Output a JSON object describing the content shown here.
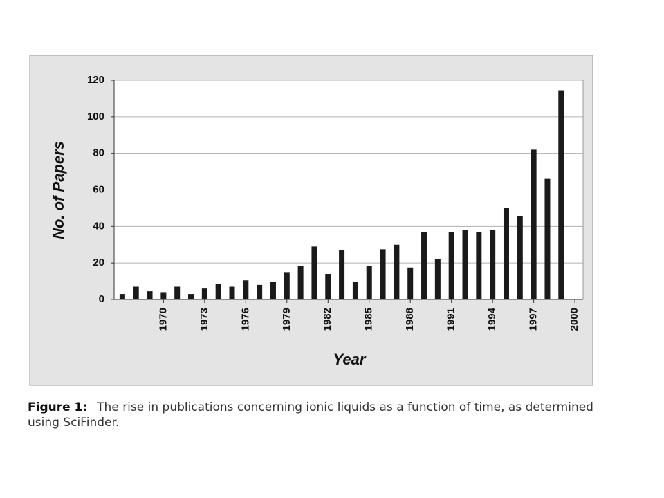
{
  "chart_data": {
    "type": "bar",
    "x_label": "Year",
    "y_label": "No. of Papers",
    "x": [
      1967,
      1968,
      1969,
      1970,
      1971,
      1972,
      1973,
      1974,
      1975,
      1976,
      1977,
      1978,
      1979,
      1980,
      1981,
      1982,
      1983,
      1984,
      1985,
      1986,
      1987,
      1988,
      1989,
      1990,
      1991,
      1992,
      1993,
      1994,
      1995,
      1996,
      1997,
      1998,
      1999
    ],
    "values": [
      3,
      7,
      4.5,
      4,
      7,
      3,
      6,
      8.5,
      7,
      10.5,
      8,
      9.5,
      15,
      18.5,
      29,
      14,
      27,
      9.5,
      18.5,
      27.5,
      30,
      17.5,
      37,
      22,
      37,
      38,
      37,
      38,
      50,
      45.5,
      82,
      66,
      114.5
    ],
    "color": "#1a1a1a",
    "xlim": [
      1966.4,
      2000.6
    ],
    "xticks": [
      1970,
      1973,
      1976,
      1979,
      1982,
      1985,
      1988,
      1991,
      1994,
      1997,
      2000
    ],
    "ylim": [
      0,
      120
    ],
    "yticks": [
      0,
      20,
      40,
      60,
      80,
      100,
      120
    ],
    "grid": true
  },
  "caption": {
    "label": "Figure 1:",
    "text": "The rise in publications concerning ionic liquids as a function of time, as determined using SciFinder."
  }
}
